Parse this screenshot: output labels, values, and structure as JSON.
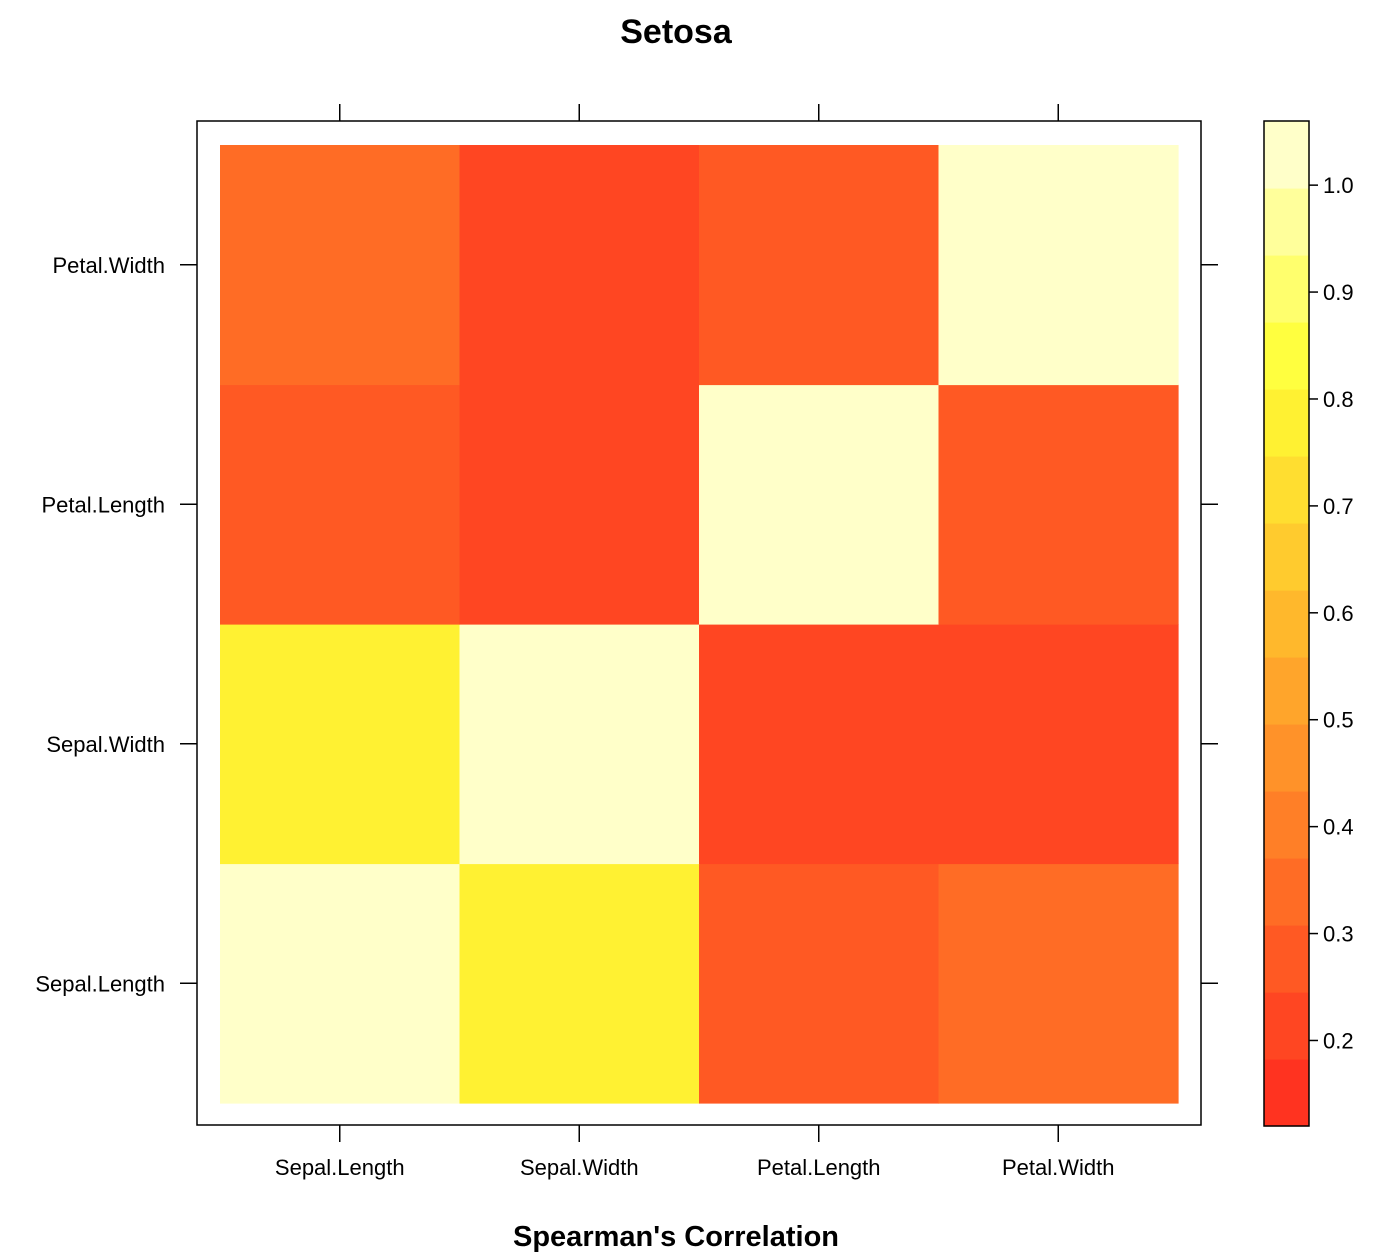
{
  "chart_data": {
    "type": "heatmap",
    "title": "Setosa",
    "xlabel": "Spearman's Correlation",
    "ylabel": "",
    "x_categories": [
      "Sepal.Length",
      "Sepal.Width",
      "Petal.Length",
      "Petal.Width"
    ],
    "y_categories": [
      "Sepal.Length",
      "Sepal.Width",
      "Petal.Length",
      "Petal.Width"
    ],
    "values": [
      [
        1.0,
        0.76,
        0.27,
        0.33
      ],
      [
        0.76,
        1.0,
        0.19,
        0.24
      ],
      [
        0.27,
        0.19,
        1.0,
        0.25
      ],
      [
        0.33,
        0.24,
        0.25,
        1.0
      ]
    ],
    "colorbar": {
      "range": [
        0.12,
        1.06
      ],
      "ticks": [
        "0.2",
        "0.3",
        "0.4",
        "0.5",
        "0.6",
        "0.7",
        "0.8",
        "0.9",
        "1.0"
      ],
      "tick_values": [
        0.2,
        0.3,
        0.4,
        0.5,
        0.6,
        0.7,
        0.8,
        0.9,
        1.0
      ],
      "levels": 15
    },
    "palette": {
      "low": "#ff2a1f",
      "mid": "#ffff33",
      "high": "#ffffe0"
    }
  }
}
